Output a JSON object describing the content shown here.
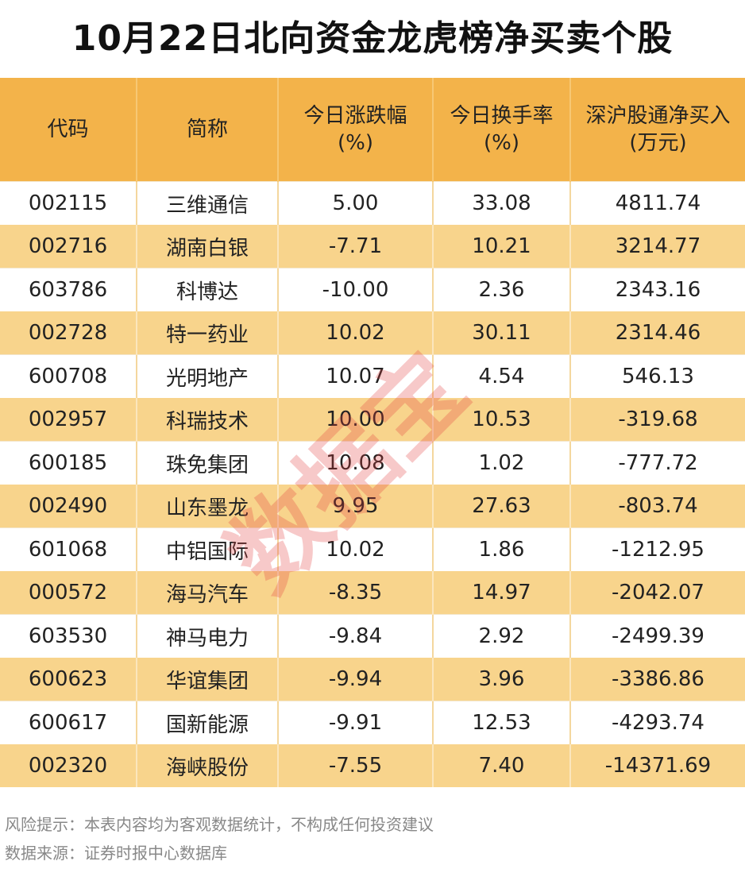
{
  "title": "10月22日北向资金龙虎榜净买卖个股",
  "table": {
    "header": [
      [
        "代码"
      ],
      [
        "简称"
      ],
      [
        "今日涨跌幅",
        "(%)"
      ],
      [
        "今日换手率",
        "(%)"
      ],
      [
        "深沪股通净买入",
        "(万元)"
      ]
    ],
    "rows": [
      [
        "002115",
        "三维通信",
        "5.00",
        "33.08",
        "4811.74"
      ],
      [
        "002716",
        "湖南白银",
        "-7.71",
        "10.21",
        "3214.77"
      ],
      [
        "603786",
        "科博达",
        "-10.00",
        "2.36",
        "2343.16"
      ],
      [
        "002728",
        "特一药业",
        "10.02",
        "30.11",
        "2314.46"
      ],
      [
        "600708",
        "光明地产",
        "10.07",
        "4.54",
        "546.13"
      ],
      [
        "002957",
        "科瑞技术",
        "10.00",
        "10.53",
        "-319.68"
      ],
      [
        "600185",
        "珠免集团",
        "10.08",
        "1.02",
        "-777.72"
      ],
      [
        "002490",
        "山东墨龙",
        "9.95",
        "27.63",
        "-803.74"
      ],
      [
        "601068",
        "中铝国际",
        "10.02",
        "1.86",
        "-1212.95"
      ],
      [
        "000572",
        "海马汽车",
        "-8.35",
        "14.97",
        "-2042.07"
      ],
      [
        "603530",
        "神马电力",
        "-9.84",
        "2.92",
        "-2499.39"
      ],
      [
        "600623",
        "华谊集团",
        "-9.94",
        "3.96",
        "-3386.86"
      ],
      [
        "600617",
        "国新能源",
        "-9.91",
        "12.53",
        "-4293.74"
      ],
      [
        "002320",
        "海峡股份",
        "-7.55",
        "7.40",
        "-14371.69"
      ]
    ]
  },
  "footnotes": [
    "风险提示：本表内容均为客观数据统计，不构成任何投资建议",
    "数据来源：证券时报中心数据库"
  ],
  "watermark": "数据宝"
}
